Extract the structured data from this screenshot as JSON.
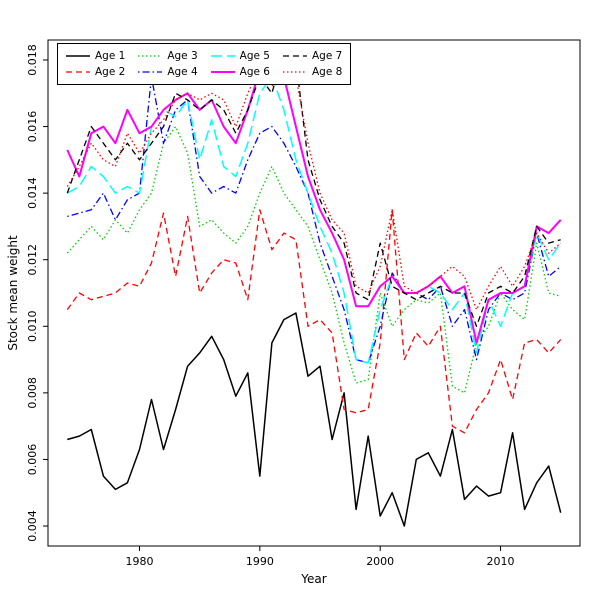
{
  "figure": {
    "background": "#ffffff",
    "plot_border_color": "#000000"
  },
  "chart_data": {
    "type": "line",
    "title": "",
    "xlabel": "Year",
    "ylabel": "Stock mean weight",
    "grid": false,
    "legend_position": "top-left",
    "legend_columns": 4,
    "xlim": [
      1972.4,
      2016.6
    ],
    "ylim": [
      0.0034,
      0.0186
    ],
    "x_ticks": [
      1980,
      1990,
      2000,
      2010
    ],
    "y_ticks": [
      0.004,
      0.006,
      0.008,
      0.01,
      0.012,
      0.014,
      0.016,
      0.018
    ],
    "y_tick_labels": [
      "0.004",
      "0.006",
      "0.008",
      "0.010",
      "0.012",
      "0.014",
      "0.016",
      "0.018"
    ],
    "x": [
      1974,
      1975,
      1976,
      1977,
      1978,
      1979,
      1980,
      1981,
      1982,
      1983,
      1984,
      1985,
      1986,
      1987,
      1988,
      1989,
      1990,
      1991,
      1992,
      1993,
      1994,
      1995,
      1996,
      1997,
      1998,
      1999,
      2000,
      2001,
      2002,
      2003,
      2004,
      2005,
      2006,
      2007,
      2008,
      2009,
      2010,
      2011,
      2012,
      2013,
      2014,
      2015
    ],
    "series": [
      {
        "name": "Age 1",
        "color": "#000000",
        "style": "solid",
        "width": 1.5,
        "values": [
          0.0066,
          0.0067,
          0.0069,
          0.0055,
          0.0051,
          0.0053,
          0.0063,
          0.0078,
          0.0063,
          0.0075,
          0.0088,
          0.0092,
          0.0097,
          0.009,
          0.0079,
          0.0086,
          0.0055,
          0.0095,
          0.0102,
          0.0104,
          0.0085,
          0.0088,
          0.0066,
          0.008,
          0.0045,
          0.0067,
          0.0043,
          0.005,
          0.004,
          0.006,
          0.0062,
          0.0055,
          0.0069,
          0.0048,
          0.0052,
          0.0049,
          0.005,
          0.0068,
          0.0045,
          0.0053,
          0.0058,
          0.0044
        ]
      },
      {
        "name": "Age 2",
        "color": "#ff0000",
        "style": "dashed",
        "width": 1.3,
        "values": [
          0.0105,
          0.011,
          0.0108,
          0.0109,
          0.011,
          0.0113,
          0.0112,
          0.0119,
          0.0134,
          0.0115,
          0.0133,
          0.011,
          0.0116,
          0.012,
          0.0119,
          0.0108,
          0.0135,
          0.0123,
          0.0128,
          0.0126,
          0.01,
          0.0102,
          0.0098,
          0.0075,
          0.0074,
          0.0075,
          0.0095,
          0.0135,
          0.009,
          0.0098,
          0.0094,
          0.01,
          0.007,
          0.0068,
          0.0075,
          0.008,
          0.009,
          0.0078,
          0.0095,
          0.0096,
          0.0092,
          0.0096
        ]
      },
      {
        "name": "Age 3",
        "color": "#00cd00",
        "style": "dotted",
        "width": 1.3,
        "values": [
          0.0122,
          0.0126,
          0.013,
          0.0126,
          0.0132,
          0.0128,
          0.0135,
          0.014,
          0.0155,
          0.016,
          0.0152,
          0.013,
          0.0132,
          0.0128,
          0.0125,
          0.013,
          0.014,
          0.0148,
          0.014,
          0.0135,
          0.013,
          0.012,
          0.011,
          0.0095,
          0.0083,
          0.0084,
          0.011,
          0.01,
          0.0105,
          0.0108,
          0.0107,
          0.011,
          0.0082,
          0.008,
          0.0095,
          0.01,
          0.011,
          0.0105,
          0.0102,
          0.0125,
          0.011,
          0.0109
        ]
      },
      {
        "name": "Age 4",
        "color": "#0000ff",
        "style": "dashdot",
        "width": 1.3,
        "values": [
          0.0133,
          0.0134,
          0.0135,
          0.014,
          0.0132,
          0.0138,
          0.014,
          0.0175,
          0.0155,
          0.0165,
          0.0168,
          0.0145,
          0.014,
          0.0142,
          0.014,
          0.015,
          0.0158,
          0.016,
          0.0155,
          0.0148,
          0.014,
          0.0125,
          0.0115,
          0.0105,
          0.009,
          0.0089,
          0.01,
          0.0116,
          0.011,
          0.011,
          0.0108,
          0.0112,
          0.01,
          0.0105,
          0.009,
          0.0105,
          0.011,
          0.0108,
          0.011,
          0.0128,
          0.0115,
          0.0118
        ]
      },
      {
        "name": "Age 5",
        "color": "#00ffff",
        "style": "longdash",
        "width": 1.5,
        "values": [
          0.014,
          0.0142,
          0.0148,
          0.0145,
          0.014,
          0.0142,
          0.014,
          0.016,
          0.0165,
          0.0163,
          0.0168,
          0.015,
          0.0162,
          0.0148,
          0.0145,
          0.0155,
          0.017,
          0.0175,
          0.0165,
          0.015,
          0.014,
          0.013,
          0.0122,
          0.011,
          0.009,
          0.0089,
          0.0105,
          0.0115,
          0.011,
          0.011,
          0.0112,
          0.011,
          0.0105,
          0.011,
          0.0092,
          0.0108,
          0.01,
          0.011,
          0.0112,
          0.0128,
          0.012,
          0.0125
        ]
      },
      {
        "name": "Age 6",
        "color": "#ff00ff",
        "style": "solid",
        "width": 2,
        "values": [
          0.0153,
          0.0145,
          0.0158,
          0.016,
          0.0155,
          0.0165,
          0.0158,
          0.016,
          0.0165,
          0.0168,
          0.017,
          0.0165,
          0.0168,
          0.016,
          0.0155,
          0.0165,
          0.0177,
          0.0176,
          0.0175,
          0.016,
          0.0145,
          0.0135,
          0.0128,
          0.012,
          0.0106,
          0.0106,
          0.0112,
          0.0115,
          0.011,
          0.011,
          0.0112,
          0.0115,
          0.011,
          0.0112,
          0.0095,
          0.0108,
          0.011,
          0.011,
          0.0112,
          0.013,
          0.0128,
          0.0132
        ]
      },
      {
        "name": "Age 7",
        "color": "#000000",
        "style": "dashed",
        "width": 1.3,
        "values": [
          0.014,
          0.015,
          0.016,
          0.0155,
          0.015,
          0.0155,
          0.015,
          0.0155,
          0.016,
          0.017,
          0.0168,
          0.0165,
          0.0168,
          0.0165,
          0.0158,
          0.0165,
          0.0175,
          0.017,
          0.0183,
          0.018,
          0.015,
          0.0138,
          0.013,
          0.0125,
          0.011,
          0.0108,
          0.0125,
          0.0112,
          0.011,
          0.0108,
          0.011,
          0.0112,
          0.011,
          0.011,
          0.01,
          0.011,
          0.0112,
          0.011,
          0.0115,
          0.013,
          0.0125,
          0.0126
        ]
      },
      {
        "name": "Age 8",
        "color": "#ff0000",
        "style": "dotted",
        "width": 1.3,
        "values": [
          0.0142,
          0.0148,
          0.0155,
          0.015,
          0.0148,
          0.0158,
          0.0152,
          0.0158,
          0.0162,
          0.0168,
          0.017,
          0.0168,
          0.017,
          0.0168,
          0.016,
          0.017,
          0.0178,
          0.0172,
          0.018,
          0.0175,
          0.0155,
          0.014,
          0.0132,
          0.0128,
          0.0112,
          0.011,
          0.0118,
          0.0135,
          0.0112,
          0.011,
          0.0112,
          0.0115,
          0.0118,
          0.0115,
          0.0105,
          0.0112,
          0.0118,
          0.0112,
          0.0118,
          0.0128,
          0.0122,
          0.0125
        ]
      }
    ]
  }
}
